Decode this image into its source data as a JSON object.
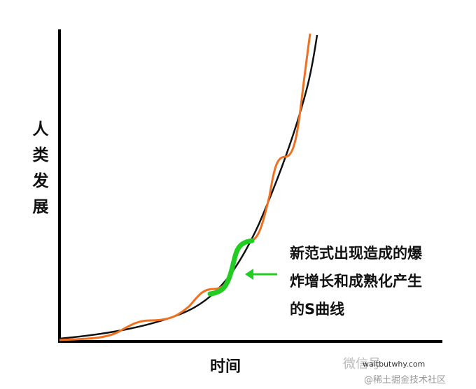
{
  "y_label": "人类发展",
  "x_label": "时间",
  "annotation": {
    "lines": [
      "新范式出现造成的爆",
      "炸增长和成熟化产生",
      "的S曲线"
    ]
  },
  "source": "waitbutwhy.com",
  "wechat": "微信号",
  "watermark": "@稀土掘金技术社区"
}
